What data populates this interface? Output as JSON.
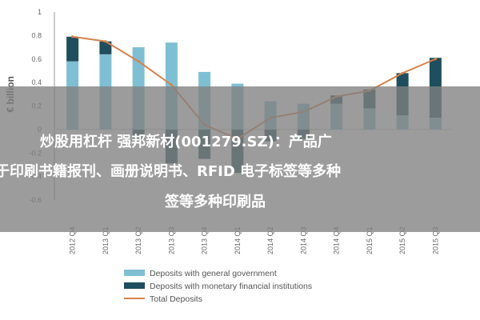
{
  "chart_data": {
    "type": "bar",
    "categories": [
      "2012 Q4",
      "2013 Q1",
      "2013 Q2",
      "2013 Q3",
      "2013 Q4",
      "2014 Q1",
      "2014 Q2",
      "2014 Q3",
      "2014 Q4",
      "2015 Q1",
      "2015 Q2",
      "2015 Q3"
    ],
    "series": [
      {
        "name": "Deposits with general government",
        "kind": "bar",
        "values": [
          0.58,
          0.64,
          0.7,
          0.74,
          0.49,
          0.39,
          0.24,
          0.22,
          0.22,
          0.18,
          0.12,
          0.1
        ]
      },
      {
        "name": "Deposits with monetary financial institutions",
        "kind": "bar",
        "values": [
          0.21,
          0.11,
          -0.08,
          -0.29,
          -0.25,
          -0.37,
          -0.1,
          -0.08,
          0.07,
          0.16,
          0.36,
          0.51
        ]
      },
      {
        "name": "Total Deposits",
        "kind": "line",
        "values": [
          0.79,
          0.75,
          0.58,
          0.38,
          0.04,
          -0.08,
          0.1,
          0.15,
          0.28,
          0.33,
          0.48,
          0.6
        ]
      }
    ],
    "ylabel": "€ billion",
    "yticks": [
      "1",
      "0.8",
      "0.6",
      "0.4",
      "0.2",
      "0",
      "-0.2",
      "-0.4",
      "-0.6"
    ],
    "ylim": [
      -0.6,
      1.0
    ],
    "grid": false,
    "legend_position": "bottom",
    "colors": {
      "general_government": "#7fbfd3",
      "mfi": "#1f4e5e",
      "total": "#d9814a",
      "axis": "#999999"
    }
  },
  "overlay": {
    "line1": "炒股用杠杆 强邦新材(001279.SZ)：产品广",
    "line2": "于印刷书籍报刊、画册说明书、RFID 电子标签等多种",
    "line3": "签等多种印刷品"
  }
}
